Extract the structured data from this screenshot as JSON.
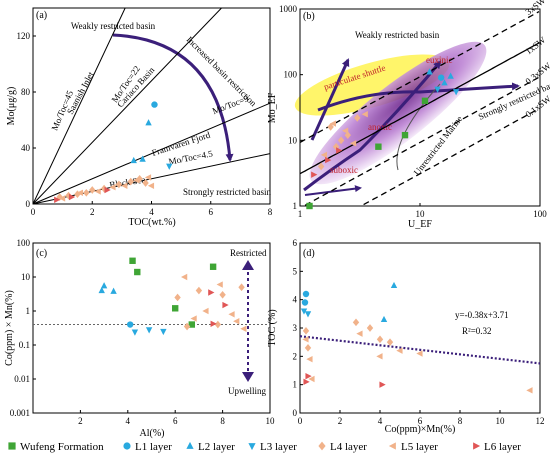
{
  "chart_data": [
    {
      "id": "a",
      "type": "scatter",
      "panel_label": "(a)",
      "xlabel": "TOC(wt.%)",
      "ylabel": "Mo(μg/g)",
      "xlim": [
        0,
        8
      ],
      "ylim": [
        0,
        140
      ],
      "xticks": [
        "0",
        "2",
        "4",
        "6",
        "8"
      ],
      "yticks": [
        "0",
        "40",
        "80",
        "120"
      ],
      "reference_lines": [
        {
          "label": "Mo/Toc=45",
          "slope": 45
        },
        {
          "label": "Mo/Toc=22",
          "slope": 22
        },
        {
          "label": "Mo/Toc=9",
          "slope": 9
        },
        {
          "label": "Mo/Toc=4.5",
          "slope": 4.5
        }
      ],
      "annotations": [
        "Weakly restricted basin",
        "Saanish Inlet",
        "Cariaco Basin",
        "Increased basin restriction",
        "Framvaren Fjord",
        "Black Sea",
        "Strongly restricted basin"
      ],
      "series": [
        {
          "name": "L1 layer",
          "marker": "circle",
          "color": "#29a9df",
          "points": [
            [
              4.1,
              71
            ]
          ]
        },
        {
          "name": "L2 layer",
          "marker": "triangle-up",
          "color": "#29a9df",
          "points": [
            [
              3.9,
              58
            ],
            [
              3.4,
              31
            ],
            [
              3.7,
              32
            ]
          ]
        },
        {
          "name": "L3 layer",
          "marker": "triangle-down",
          "color": "#29a9df",
          "points": [
            [
              4.6,
              27
            ]
          ]
        },
        {
          "name": "L4 layer",
          "marker": "diamond",
          "color": "#f1b28a",
          "points": [
            [
              0.9,
              5
            ],
            [
              1.2,
              6
            ],
            [
              1.8,
              8
            ],
            [
              2.0,
              10
            ],
            [
              2.4,
              11
            ],
            [
              2.9,
              14
            ],
            [
              3.3,
              16
            ],
            [
              3.6,
              18
            ],
            [
              3.8,
              15
            ],
            [
              1.5,
              7
            ]
          ]
        },
        {
          "name": "L5 layer",
          "marker": "triangle-left",
          "color": "#f1b28a",
          "points": [
            [
              1.0,
              4
            ],
            [
              1.6,
              8
            ],
            [
              2.2,
              9
            ],
            [
              2.7,
              12
            ],
            [
              3.1,
              13
            ],
            [
              3.5,
              17
            ],
            [
              3.9,
              19
            ],
            [
              4.0,
              13
            ]
          ]
        },
        {
          "name": "L6 layer",
          "marker": "triangle-right",
          "color": "#e05656",
          "points": [
            [
              0.8,
              3
            ],
            [
              1.3,
              5
            ],
            [
              2.5,
              10
            ]
          ]
        }
      ]
    },
    {
      "id": "b",
      "type": "scatter",
      "panel_label": "(b)",
      "xlabel": "U_EF",
      "ylabel": "Mo_EF",
      "xlim": [
        1,
        100
      ],
      "ylim": [
        1,
        1000
      ],
      "xscale": "log",
      "yscale": "log",
      "xticks": [
        "1",
        "10",
        "100"
      ],
      "yticks": [
        "1",
        "10",
        "100",
        "1000"
      ],
      "reference_lines": [
        {
          "label": "3xSW",
          "factor": 3
        },
        {
          "label": "1xSW",
          "factor": 1
        },
        {
          "label": "0.3xSW",
          "factor": 0.3
        },
        {
          "label": "0.1xSW",
          "factor": 0.1
        }
      ],
      "annotations": [
        "Weakly restricted basin",
        "particulate shuttle",
        "euxinic",
        "anoxic",
        "suboxic",
        "Unrestricted Marine",
        "Strongly restricted basin"
      ],
      "series": [
        {
          "name": "Wufeng Formation",
          "marker": "square",
          "color": "#3fa535",
          "points": [
            [
              4.5,
              8
            ],
            [
              7.5,
              12
            ],
            [
              1.2,
              1.0
            ],
            [
              11,
              40
            ]
          ]
        },
        {
          "name": "L1 layer",
          "marker": "circle",
          "color": "#29a9df",
          "points": [
            [
              15,
              90
            ]
          ]
        },
        {
          "name": "L2 layer",
          "marker": "triangle-up",
          "color": "#29a9df",
          "points": [
            [
              12,
              110
            ],
            [
              16,
              75
            ],
            [
              18,
              95
            ]
          ]
        },
        {
          "name": "L3 layer",
          "marker": "triangle-down",
          "color": "#29a9df",
          "points": [
            [
              14,
              60
            ],
            [
              20,
              55
            ]
          ]
        },
        {
          "name": "L4 layer",
          "marker": "diamond",
          "color": "#f1b28a",
          "points": [
            [
              1.5,
              4
            ],
            [
              2.0,
              8
            ],
            [
              2.5,
              12
            ],
            [
              1.8,
              16
            ],
            [
              3,
              22
            ],
            [
              2.2,
              10
            ]
          ]
        },
        {
          "name": "L5 layer",
          "marker": "triangle-left",
          "color": "#f1b28a",
          "points": [
            [
              1.6,
              6
            ],
            [
              2.4,
              14
            ],
            [
              3.5,
              25
            ],
            [
              1.9,
              18
            ],
            [
              2.8,
              9
            ]
          ]
        },
        {
          "name": "L6 layer",
          "marker": "triangle-right",
          "color": "#e05656",
          "points": [
            [
              1.3,
              3
            ],
            [
              1.7,
              5
            ],
            [
              2.1,
              7
            ]
          ]
        }
      ]
    },
    {
      "id": "c",
      "type": "scatter",
      "panel_label": "(c)",
      "xlabel": "Al(%)",
      "ylabel": "Co(ppm) × Mn(%)",
      "xlim": [
        0,
        10
      ],
      "ylim": [
        0.001,
        100
      ],
      "yscale": "log",
      "xticks": [
        "2",
        "4",
        "6",
        "8",
        "10"
      ],
      "yticks": [
        "0.001",
        "0.01",
        "0.1",
        "1",
        "10",
        "100"
      ],
      "reference_value": 0.4,
      "annotations": [
        "Restricted",
        "Upwelling"
      ],
      "series": [
        {
          "name": "Wufeng Formation",
          "marker": "square",
          "color": "#3fa535",
          "points": [
            [
              4.2,
              30
            ],
            [
              4.4,
              14
            ],
            [
              6.0,
              1.2
            ],
            [
              6.7,
              0.4
            ],
            [
              7.6,
              20
            ]
          ]
        },
        {
          "name": "L1 layer",
          "marker": "circle",
          "color": "#29a9df",
          "points": [
            [
              4.1,
              0.4
            ]
          ]
        },
        {
          "name": "L2 layer",
          "marker": "triangle-up",
          "color": "#29a9df",
          "points": [
            [
              3.0,
              5.5
            ],
            [
              3.4,
              3.8
            ],
            [
              2.9,
              4.0
            ]
          ]
        },
        {
          "name": "L3 layer",
          "marker": "triangle-down",
          "color": "#29a9df",
          "points": [
            [
              4.9,
              0.28
            ],
            [
              5.5,
              0.25
            ],
            [
              4.3,
              0.24
            ]
          ]
        },
        {
          "name": "L4 layer",
          "marker": "diamond",
          "color": "#f1b28a",
          "points": [
            [
              6.1,
              2.5
            ],
            [
              7.0,
              4.0
            ],
            [
              8.0,
              3.0
            ],
            [
              8.8,
              5.0
            ],
            [
              7.8,
              0.4
            ],
            [
              6.5,
              0.35
            ]
          ]
        },
        {
          "name": "L5 layer",
          "marker": "triangle-left",
          "color": "#f1b28a",
          "points": [
            [
              6.4,
              10.0
            ],
            [
              7.3,
              1.0
            ],
            [
              8.4,
              0.8
            ],
            [
              8.6,
              0.5
            ],
            [
              8.9,
              0.3
            ],
            [
              6.8,
              0.6
            ],
            [
              7.9,
              6.0
            ]
          ]
        },
        {
          "name": "L6 layer",
          "marker": "triangle-right",
          "color": "#e05656",
          "points": [
            [
              7.5,
              3.5
            ],
            [
              7.6,
              0.42
            ],
            [
              8.1,
              1.5
            ]
          ]
        }
      ]
    },
    {
      "id": "d",
      "type": "scatter",
      "panel_label": "(d)",
      "xlabel": "Co(ppm)×Mn(%)",
      "ylabel": "TOC (%)",
      "xlim": [
        0,
        12
      ],
      "ylim": [
        0,
        6
      ],
      "xticks": [
        "0",
        "2",
        "4",
        "6",
        "8",
        "10",
        "12"
      ],
      "yticks": [
        "0",
        "1",
        "2",
        "3",
        "4",
        "5",
        "6"
      ],
      "regression": {
        "slope": -0.38,
        "intercept": 3.71,
        "r2": 0.32
      },
      "regression_label": "y=-0.38x+3.71",
      "r2_label": "R²=0.32",
      "series": [
        {
          "name": "L1 layer",
          "marker": "circle",
          "color": "#29a9df",
          "points": [
            [
              0.3,
              4.2
            ],
            [
              0.25,
              3.9
            ]
          ]
        },
        {
          "name": "L2 layer",
          "marker": "triangle-up",
          "color": "#29a9df",
          "points": [
            [
              4.7,
              4.5
            ],
            [
              4.2,
              3.3
            ]
          ]
        },
        {
          "name": "L3 layer",
          "marker": "triangle-down",
          "color": "#29a9df",
          "points": [
            [
              0.2,
              3.6
            ],
            [
              0.4,
              3.5
            ]
          ]
        },
        {
          "name": "L4 layer",
          "marker": "diamond",
          "color": "#f1b28a",
          "points": [
            [
              0.3,
              2.9
            ],
            [
              2.8,
              3.2
            ],
            [
              3.5,
              3.0
            ],
            [
              4.0,
              2.6
            ],
            [
              4.5,
              2.5
            ],
            [
              0.4,
              2.3
            ]
          ]
        },
        {
          "name": "L5 layer",
          "marker": "triangle-left",
          "color": "#f1b28a",
          "points": [
            [
              0.3,
              2.6
            ],
            [
              0.5,
              1.9
            ],
            [
              0.6,
              1.2
            ],
            [
              3.0,
              2.8
            ],
            [
              4.0,
              2.0
            ],
            [
              5.0,
              2.2
            ],
            [
              11.5,
              0.8
            ],
            [
              6.0,
              2.1
            ]
          ]
        },
        {
          "name": "L6 layer",
          "marker": "triangle-right",
          "color": "#e05656",
          "points": [
            [
              0.4,
              1.3
            ],
            [
              0.3,
              1.1
            ],
            [
              4.1,
              1.0
            ]
          ]
        }
      ]
    }
  ],
  "legend": [
    {
      "label": "Wufeng Formation",
      "marker": "square",
      "color": "#3fa535"
    },
    {
      "label": "L1 layer",
      "marker": "circle",
      "color": "#29a9df"
    },
    {
      "label": "L2 layer",
      "marker": "triangle-up",
      "color": "#29a9df"
    },
    {
      "label": "L3 layer",
      "marker": "triangle-down",
      "color": "#29a9df"
    },
    {
      "label": "L4 layer",
      "marker": "diamond",
      "color": "#f1b28a"
    },
    {
      "label": "L5 layer",
      "marker": "triangle-left",
      "color": "#f1b28a"
    },
    {
      "label": "L6 layer",
      "marker": "triangle-right",
      "color": "#e05656"
    }
  ]
}
